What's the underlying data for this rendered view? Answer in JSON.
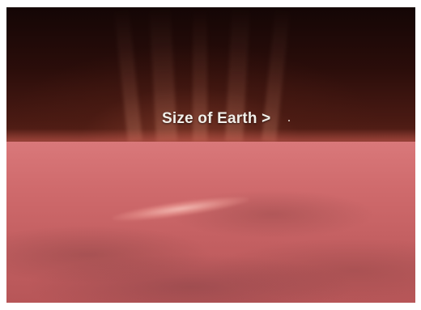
{
  "scene": {
    "caption": "Size of Earth >",
    "surface_color": "#cf6a6c",
    "sky_color": "#2a0d0a"
  }
}
